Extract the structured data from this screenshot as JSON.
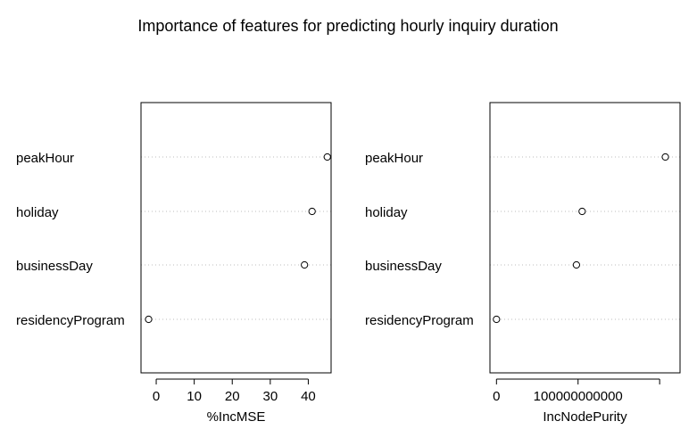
{
  "title": "Importance of features for predicting hourly inquiry duration",
  "chart_data": [
    {
      "type": "scatter",
      "xlabel": "%IncMSE",
      "xlim": [
        -4,
        46
      ],
      "xticks": [
        0,
        10,
        20,
        30,
        40
      ],
      "xtick_labels": [
        "0",
        "10",
        "20",
        "30",
        "40"
      ],
      "categories": [
        "peakHour",
        "holiday",
        "businessDay",
        "residencyProgram"
      ],
      "values": [
        45,
        41,
        39,
        -2
      ]
    },
    {
      "type": "scatter",
      "xlabel": "IncNodePurity",
      "xlim": [
        -8000000000,
        225000000000
      ],
      "xticks": [
        0,
        100000000000
      ],
      "xtick_labels": [
        "0",
        "100000000000"
      ],
      "categories": [
        "peakHour",
        "holiday",
        "businessDay",
        "residencyProgram"
      ],
      "values": [
        207000000000,
        105000000000,
        98000000000,
        0
      ]
    }
  ]
}
